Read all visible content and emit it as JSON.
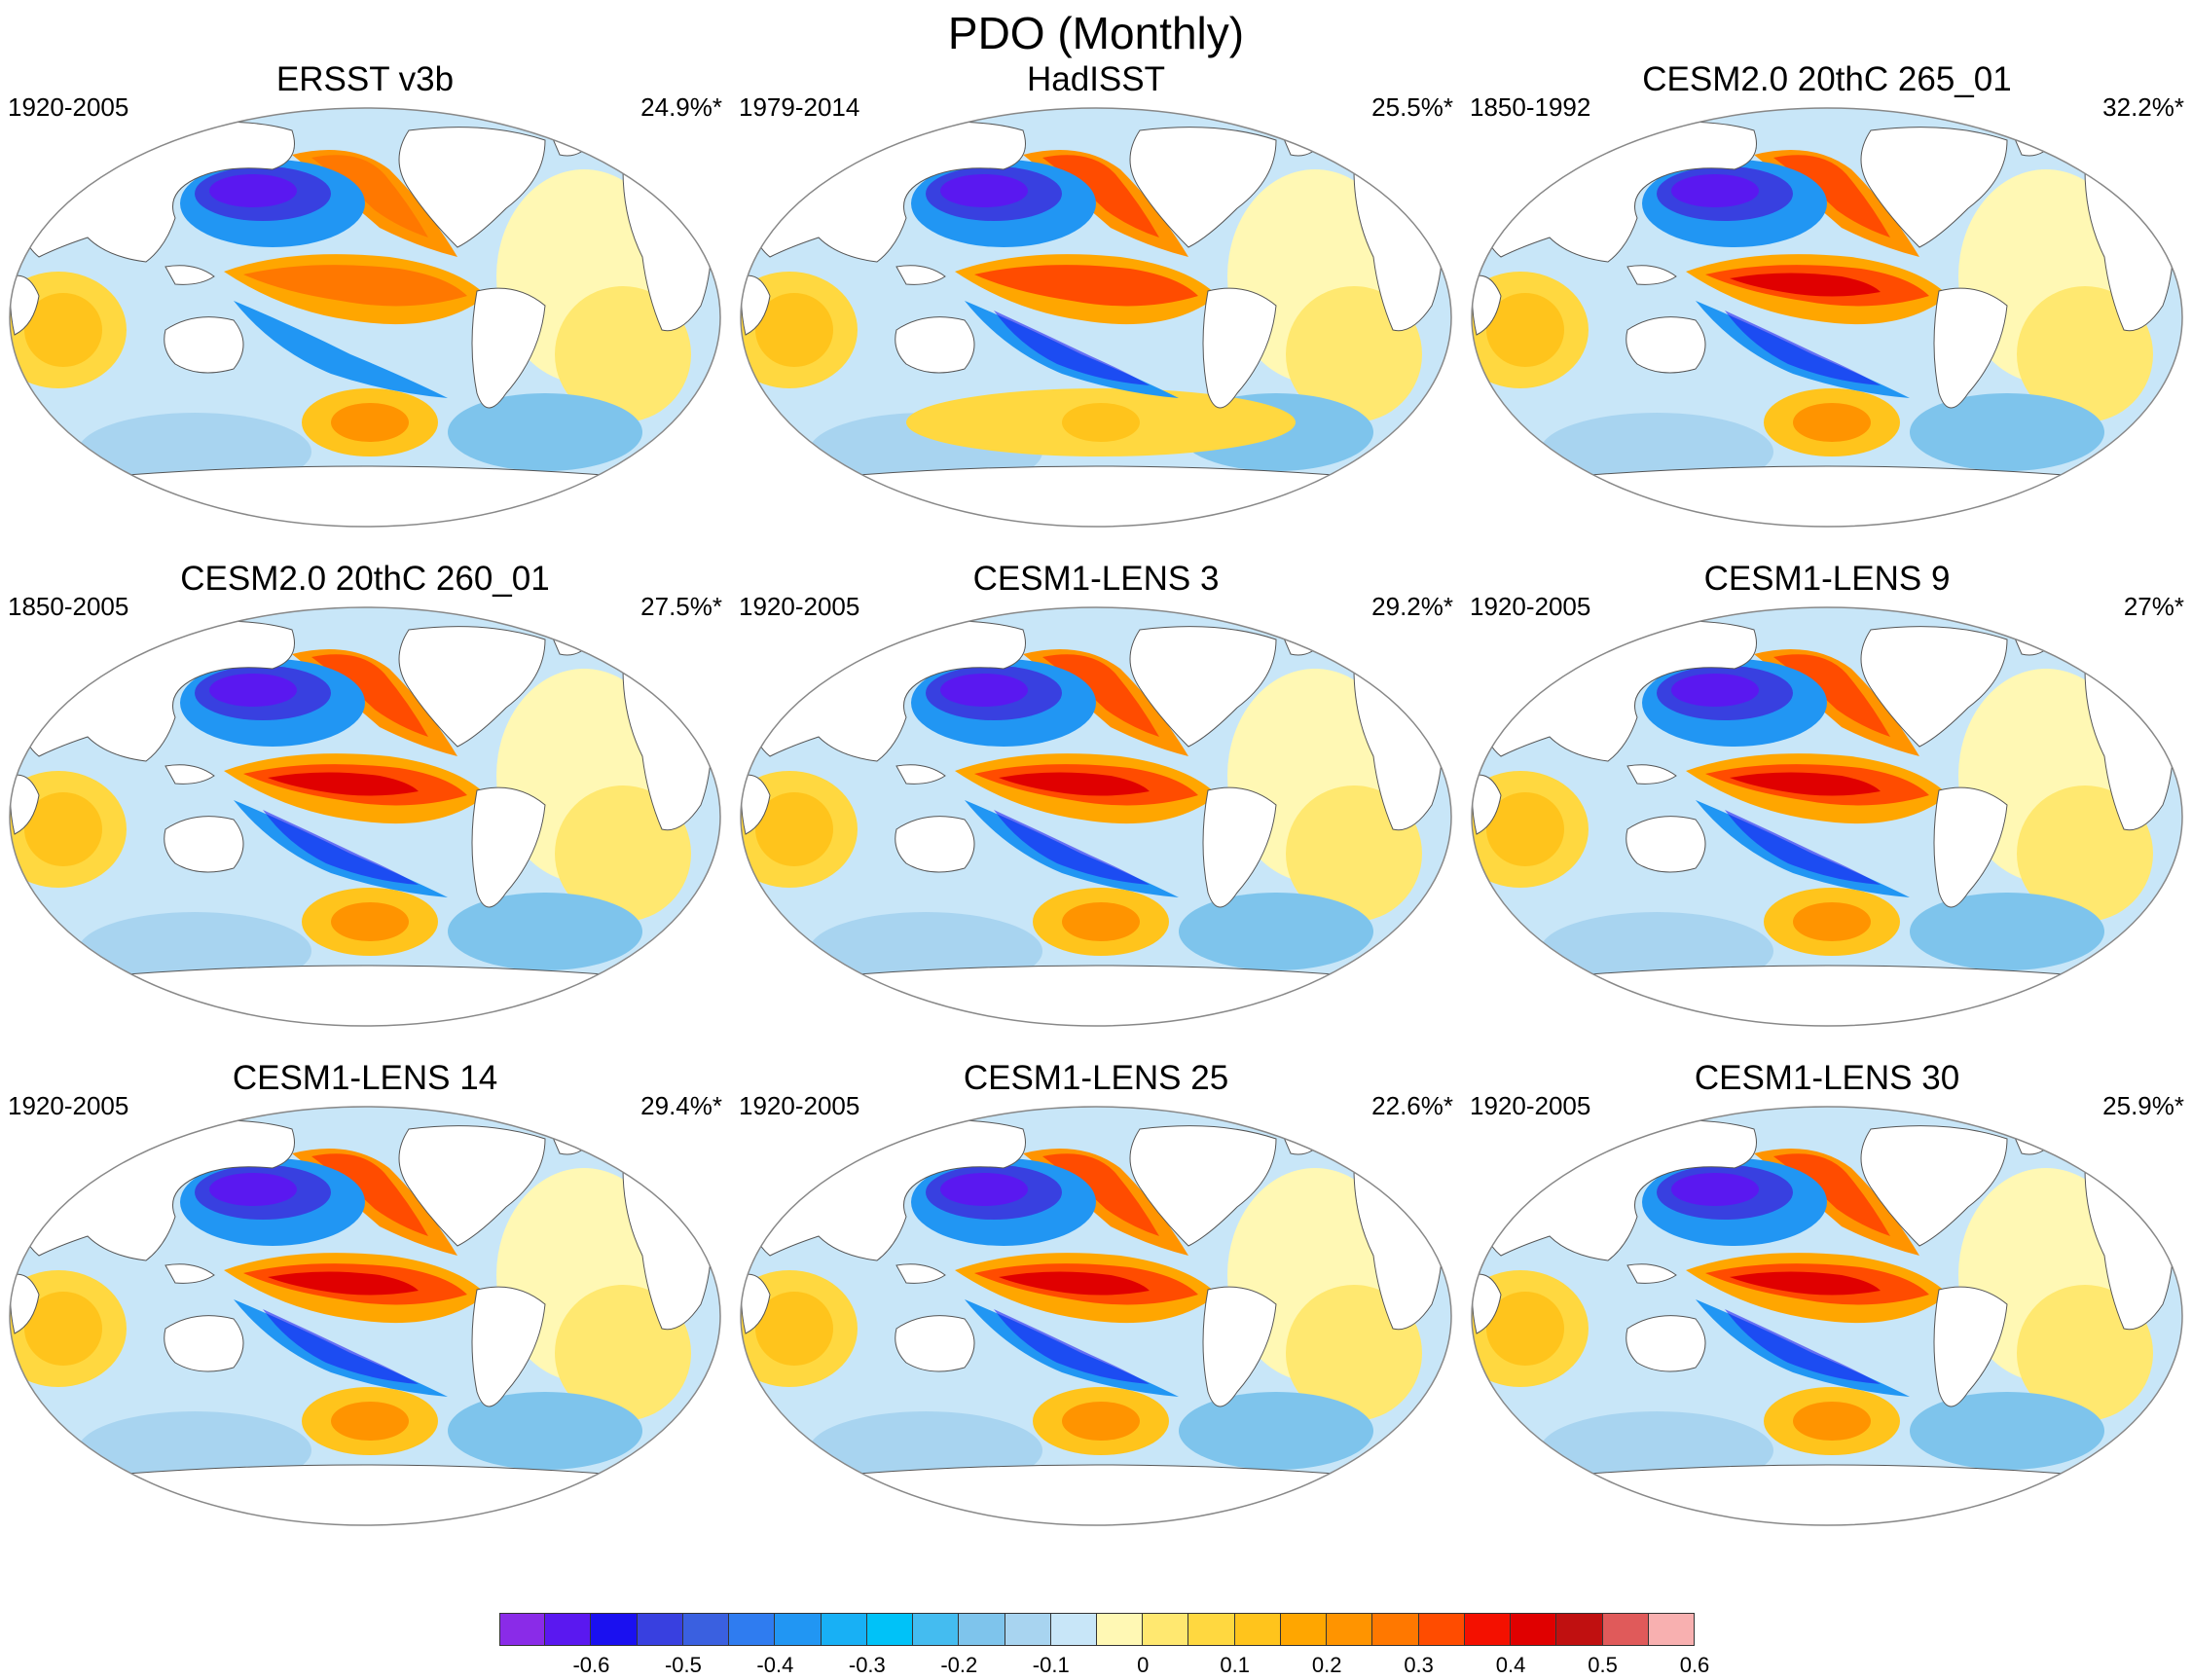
{
  "title": "PDO (Monthly)",
  "panels": [
    {
      "title": "ERSST v3b",
      "period": "1920-2005",
      "variance": "24.9%*",
      "style": "obs"
    },
    {
      "title": "HadISST",
      "period": "1979-2014",
      "variance": "25.5%*",
      "style": "obs2"
    },
    {
      "title": "CESM2.0 20thC 265_01",
      "period": "1850-1992",
      "variance": "32.2%*",
      "style": "model"
    },
    {
      "title": "CESM2.0 20thC 260_01",
      "period": "1850-2005",
      "variance": "27.5%*",
      "style": "model"
    },
    {
      "title": "CESM1-LENS 3",
      "period": "1920-2005",
      "variance": "29.2%*",
      "style": "model"
    },
    {
      "title": "CESM1-LENS 9",
      "period": "1920-2005",
      "variance": "27%*",
      "style": "model"
    },
    {
      "title": "CESM1-LENS 14",
      "period": "1920-2005",
      "variance": "29.4%*",
      "style": "model"
    },
    {
      "title": "CESM1-LENS 25",
      "period": "1920-2005",
      "variance": "22.6%*",
      "style": "model"
    },
    {
      "title": "CESM1-LENS 30",
      "period": "1920-2005",
      "variance": "25.9%*",
      "style": "model"
    }
  ],
  "colorbar": {
    "colors": [
      "#8a2be8",
      "#5a18f0",
      "#1a10f0",
      "#3840e0",
      "#3a60e0",
      "#2f7cf0",
      "#2196f3",
      "#18b0f5",
      "#00c2f8",
      "#44bcf0",
      "#7ec4ec",
      "#a8d4f0",
      "#c8e6f8",
      "#fff8b4",
      "#ffe870",
      "#ffd840",
      "#ffc41c",
      "#ffa600",
      "#ff9400",
      "#ff7800",
      "#ff4c00",
      "#f41000",
      "#e00000",
      "#c01010",
      "#e05a5a",
      "#f8b0b0"
    ],
    "labels": [
      "-0.6",
      "-0.5",
      "-0.4",
      "-0.3",
      "-0.2",
      "-0.1",
      "0",
      "0.1",
      "0.2",
      "0.3",
      "0.4",
      "0.5",
      "0.6"
    ],
    "label_positions": [
      2,
      4,
      6,
      8,
      10,
      12,
      14,
      16,
      18,
      20,
      22,
      24,
      26
    ]
  }
}
